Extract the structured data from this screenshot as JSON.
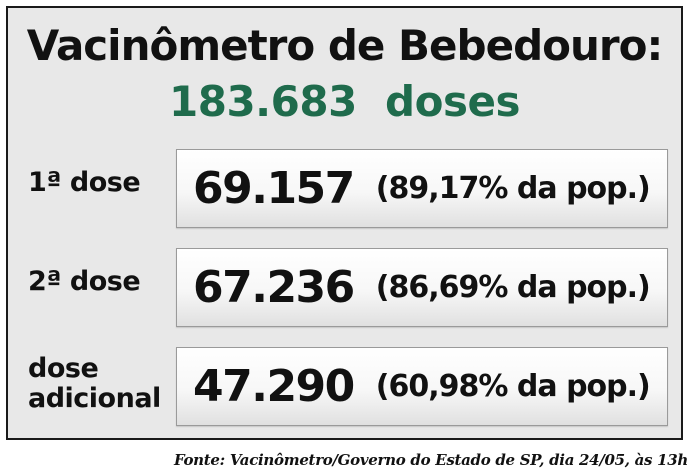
{
  "header": {
    "title": "Vacinômetro de Bebedouro:",
    "total": "183.683  doses",
    "total_color": "#1f6b4c"
  },
  "rows": [
    {
      "label_lines": [
        "1ª dose"
      ],
      "value": "69.157",
      "percent_text": "(89,17% da pop.)"
    },
    {
      "label_lines": [
        "2ª dose"
      ],
      "value": "67.236",
      "percent_text": "(86,69% da pop.)"
    },
    {
      "label_lines": [
        "dose",
        "adicional"
      ],
      "value": "47.290",
      "percent_text": "(60,98% da pop.)"
    }
  ],
  "source": "Fonte: Vacinômetro/Governo do Estado de SP, dia 24/05, às 13h",
  "colors": {
    "panel_background": "#e8e8e8",
    "border": "#1a1a1a",
    "text": "#111111"
  }
}
